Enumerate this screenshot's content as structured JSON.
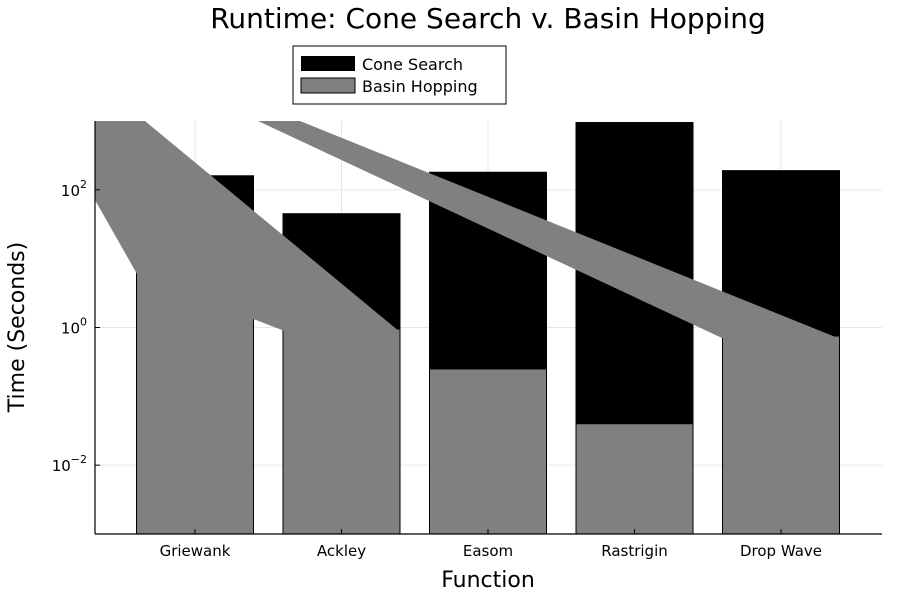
{
  "chart_data": {
    "type": "bar",
    "title": "Runtime: Cone Search v. Basin Hopping",
    "xlabel": "Function",
    "ylabel": "Time (Seconds)",
    "categories": [
      "Griewank",
      "Ackley",
      "Easom",
      "Rastrigin",
      "Drop Wave"
    ],
    "yscale": "log10",
    "ylim": [
      0.001,
      1000
    ],
    "yticks": [
      {
        "value": 0.01,
        "base": "10",
        "exp": "−2"
      },
      {
        "value": 1,
        "base": "10",
        "exp": "0"
      },
      {
        "value": 100,
        "base": "10",
        "exp": "2"
      }
    ],
    "grid": true,
    "legend_position": "top-center",
    "series": [
      {
        "name": "Cone Search",
        "color": "#000000",
        "values": [
          160,
          45,
          180,
          950,
          190
        ]
      },
      {
        "name": "Basin Hopping",
        "color": "#808080",
        "values": [
          6.5,
          0.95,
          0.25,
          0.04,
          0.75
        ]
      }
    ]
  }
}
